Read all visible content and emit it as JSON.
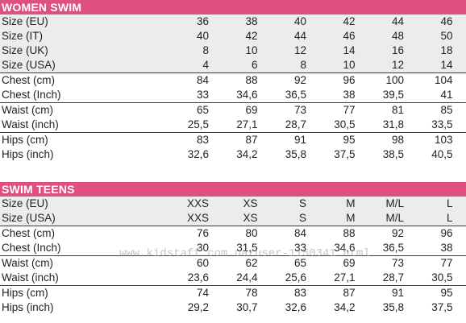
{
  "women": {
    "title": "WOMEN SWIM",
    "groups": [
      {
        "shaded": true,
        "rows": [
          {
            "label": "Size (EU)",
            "values": [
              "36",
              "38",
              "40",
              "42",
              "44",
              "46"
            ]
          },
          {
            "label": "Size (IT)",
            "values": [
              "40",
              "42",
              "44",
              "46",
              "48",
              "50"
            ]
          },
          {
            "label": "Size (UK)",
            "values": [
              "8",
              "10",
              "12",
              "14",
              "16",
              "18"
            ]
          },
          {
            "label": "Size (USA)",
            "values": [
              "4",
              "6",
              "8",
              "10",
              "12",
              "14"
            ]
          }
        ]
      },
      {
        "shaded": false,
        "rows": [
          {
            "label": "Chest (cm)",
            "values": [
              "84",
              "88",
              "92",
              "96",
              "100",
              "104"
            ]
          },
          {
            "label": "Chest (Inch)",
            "values": [
              "33",
              "34,6",
              "36,5",
              "38",
              "39,5",
              "41"
            ]
          }
        ]
      },
      {
        "shaded": false,
        "rows": [
          {
            "label": "Waist (cm)",
            "values": [
              "65",
              "69",
              "73",
              "77",
              "81",
              "85"
            ]
          },
          {
            "label": "Waist (inch)",
            "values": [
              "25,5",
              "27,1",
              "28,7",
              "30,5",
              "31,8",
              "33,5"
            ]
          }
        ]
      },
      {
        "shaded": false,
        "last": true,
        "rows": [
          {
            "label": "Hips (cm)",
            "values": [
              "83",
              "87",
              "91",
              "95",
              "98",
              "103"
            ]
          },
          {
            "label": "Hips (inch)",
            "values": [
              "32,6",
              "34,2",
              "35,8",
              "37,5",
              "38,5",
              "40,5"
            ]
          }
        ]
      }
    ]
  },
  "teens": {
    "title": "SWIM TEENS",
    "groups": [
      {
        "shaded": true,
        "rows": [
          {
            "label": "Size (EU)",
            "values": [
              "XXS",
              "XS",
              "S",
              "M",
              "M/L",
              "L"
            ]
          },
          {
            "label": "Size (USA)",
            "values": [
              "XXS",
              "XS",
              "S",
              "M",
              "M/L",
              "L"
            ]
          }
        ]
      },
      {
        "shaded": false,
        "rows": [
          {
            "label": "Chest (cm)",
            "values": [
              "76",
              "80",
              "84",
              "88",
              "92",
              "96"
            ]
          },
          {
            "label": "Chest (Inch)",
            "values": [
              "30",
              "31,5",
              "33",
              "34,6",
              "36,5",
              "38"
            ]
          }
        ]
      },
      {
        "shaded": false,
        "rows": [
          {
            "label": "Waist (cm)",
            "values": [
              "60",
              "62",
              "65",
              "69",
              "73",
              "77"
            ]
          },
          {
            "label": "Waist (inch)",
            "values": [
              "23,6",
              "24,4",
              "25,6",
              "27,1",
              "28,7",
              "30,5"
            ]
          }
        ]
      },
      {
        "shaded": false,
        "last": true,
        "rows": [
          {
            "label": "Hips (cm)",
            "values": [
              "74",
              "78",
              "83",
              "87",
              "91",
              "95"
            ]
          },
          {
            "label": "Hips (inch)",
            "values": [
              "29,2",
              "30,7",
              "32,6",
              "34,2",
              "35,8",
              "37,5"
            ]
          }
        ]
      }
    ]
  },
  "watermark": "www.kidstaff.com.ua/user-1150341.html",
  "colors": {
    "header_bg": "#e0507e",
    "header_text": "#ffffff",
    "shade": "#ececec"
  }
}
